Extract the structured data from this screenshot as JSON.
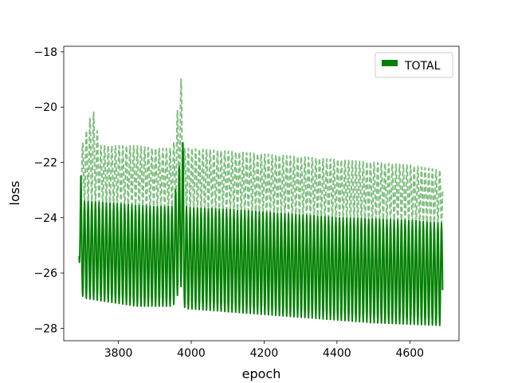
{
  "chart_data": {
    "type": "line",
    "xlabel": "epoch",
    "ylabel": "loss",
    "xlim": [
      3650,
      4735
    ],
    "ylim": [
      -28.45,
      -17.8
    ],
    "xticks": [
      3800,
      4000,
      4200,
      4400,
      4600
    ],
    "yticks": [
      -28,
      -26,
      -24,
      -22,
      -20,
      -18
    ],
    "xtick_labels": [
      "3800",
      "4000",
      "4200",
      "4400",
      "4600"
    ],
    "ytick_labels": [
      "−28",
      "−26",
      "−24",
      "−22",
      "−20",
      "−18"
    ],
    "x_range": [
      3692,
      4690
    ],
    "oscillation_period_epochs": 10,
    "legend": {
      "entries": [
        "TOTAL"
      ],
      "position": "upper right"
    },
    "series": [
      {
        "name": "TOTAL",
        "style": "solid",
        "color": "#008000",
        "x": [
          3692,
          3697,
          3700,
          3705,
          3750,
          3800,
          3850,
          3900,
          3950,
          3978,
          3980,
          3985,
          4000,
          4100,
          4200,
          4300,
          4400,
          4500,
          4600,
          4690
        ],
        "upper_envelope": [
          -25.4,
          -22.5,
          -23.5,
          -23.4,
          -23.45,
          -23.5,
          -23.55,
          -23.6,
          -23.6,
          -21.2,
          -23.6,
          -23.6,
          -23.65,
          -23.7,
          -23.8,
          -23.9,
          -24.0,
          -24.05,
          -24.1,
          -24.2
        ],
        "lower_envelope": [
          -25.4,
          -26.9,
          -26.8,
          -26.9,
          -27.0,
          -27.1,
          -27.2,
          -27.2,
          -27.2,
          -26.3,
          -27.2,
          -27.3,
          -27.3,
          -27.4,
          -27.5,
          -27.6,
          -27.7,
          -27.8,
          -27.85,
          -27.9
        ]
      },
      {
        "name": "",
        "style": "dashed",
        "color": "#7fbf7f",
        "x": [
          3697,
          3700,
          3730,
          3750,
          3800,
          3850,
          3900,
          3950,
          3978,
          3980,
          3985,
          4000,
          4100,
          4200,
          4300,
          4400,
          4500,
          4600,
          4690
        ],
        "upper_envelope": [
          -21.4,
          -21.4,
          -20.05,
          -21.4,
          -21.4,
          -21.4,
          -21.5,
          -21.5,
          -18.3,
          -21.5,
          -21.5,
          -21.5,
          -21.6,
          -21.7,
          -21.8,
          -21.9,
          -22.0,
          -22.1,
          -22.3
        ],
        "lower_envelope": [
          -23.4,
          -23.4,
          -23.4,
          -23.45,
          -23.5,
          -23.55,
          -23.6,
          -23.6,
          -23.6,
          -23.6,
          -23.6,
          -23.65,
          -23.7,
          -23.8,
          -23.9,
          -24.0,
          -24.05,
          -24.1,
          -24.2
        ]
      }
    ]
  }
}
